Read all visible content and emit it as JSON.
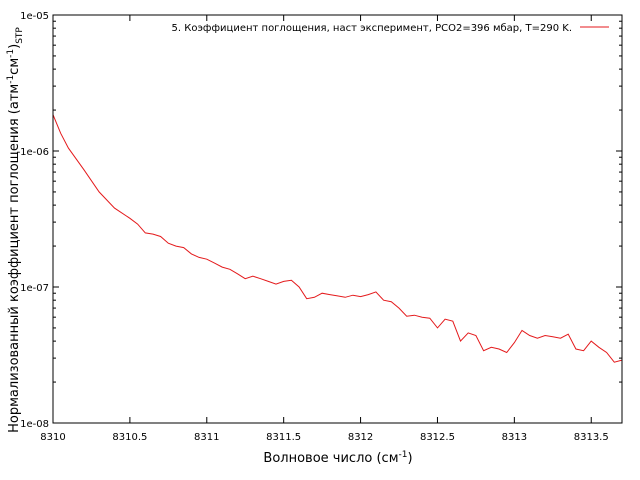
{
  "chart_data": {
    "type": "line",
    "xlabel": {
      "main": "Волновое число (см",
      "sup": "-1",
      "tail": ")"
    },
    "ylabel": {
      "parts": [
        {
          "t": "Нормализованный коэффициент поглощения (атм"
        },
        {
          "t": "-1",
          "s": "sup"
        },
        {
          "t": "см"
        },
        {
          "t": "-1",
          "s": "sup"
        },
        {
          "t": ")"
        },
        {
          "t": "STP",
          "s": "sub"
        }
      ]
    },
    "xlim": [
      8310,
      8313.7
    ],
    "ylim": [
      1e-08,
      1e-05
    ],
    "yscale": "log",
    "grid": false,
    "legend_position": "top-right",
    "x_ticks": [
      {
        "v": 8310,
        "label": "8310"
      },
      {
        "v": 8310.5,
        "label": "8310.5"
      },
      {
        "v": 8311,
        "label": "8311"
      },
      {
        "v": 8311.5,
        "label": "8311.5"
      },
      {
        "v": 8312,
        "label": "8312"
      },
      {
        "v": 8312.5,
        "label": "8312.5"
      },
      {
        "v": 8313,
        "label": "8313"
      },
      {
        "v": 8313.5,
        "label": "8313.5"
      }
    ],
    "y_ticks": [
      {
        "v": 1e-08,
        "label": "1e-08"
      },
      {
        "v": 1e-07,
        "label": "1e-07"
      },
      {
        "v": 1e-06,
        "label": "1e-06"
      },
      {
        "v": 1e-05,
        "label": "1e-05"
      }
    ],
    "series": [
      {
        "name": "5. Коэффициент поглощения, наст эксперимент, PCO2=396 мбар, T=290 K.",
        "color": "#e41a1c",
        "x": [
          8310.0,
          8310.05,
          8310.1,
          8310.2,
          8310.3,
          8310.4,
          8310.5,
          8310.55,
          8310.6,
          8310.65,
          8310.7,
          8310.75,
          8310.8,
          8310.85,
          8310.9,
          8310.95,
          8311.0,
          8311.05,
          8311.1,
          8311.15,
          8311.2,
          8311.25,
          8311.3,
          8311.35,
          8311.4,
          8311.45,
          8311.5,
          8311.55,
          8311.6,
          8311.65,
          8311.7,
          8311.75,
          8311.8,
          8311.85,
          8311.9,
          8311.95,
          8312.0,
          8312.05,
          8312.1,
          8312.15,
          8312.2,
          8312.25,
          8312.3,
          8312.35,
          8312.4,
          8312.45,
          8312.5,
          8312.55,
          8312.6,
          8312.65,
          8312.7,
          8312.75,
          8312.8,
          8312.85,
          8312.9,
          8312.95,
          8313.0,
          8313.05,
          8313.1,
          8313.15,
          8313.2,
          8313.25,
          8313.3,
          8313.35,
          8313.4,
          8313.45,
          8313.5,
          8313.55,
          8313.6,
          8313.65,
          8313.7
        ],
        "y": [
          1.85e-06,
          1.35e-06,
          1.05e-06,
          7.3e-07,
          5e-07,
          3.8e-07,
          3.2e-07,
          2.9e-07,
          2.5e-07,
          2.45e-07,
          2.35e-07,
          2.1e-07,
          2e-07,
          1.95e-07,
          1.75e-07,
          1.65e-07,
          1.6e-07,
          1.5e-07,
          1.4e-07,
          1.35e-07,
          1.25e-07,
          1.15e-07,
          1.2e-07,
          1.15e-07,
          1.1e-07,
          1.05e-07,
          1.1e-07,
          1.12e-07,
          1e-07,
          8.2e-08,
          8.4e-08,
          9e-08,
          8.8e-08,
          8.6e-08,
          8.4e-08,
          8.7e-08,
          8.5e-08,
          8.8e-08,
          9.2e-08,
          8e-08,
          7.8e-08,
          7e-08,
          6.1e-08,
          6.2e-08,
          6e-08,
          5.9e-08,
          5e-08,
          5.8e-08,
          5.6e-08,
          4e-08,
          4.6e-08,
          4.4e-08,
          3.4e-08,
          3.6e-08,
          3.5e-08,
          3.3e-08,
          3.9e-08,
          4.8e-08,
          4.4e-08,
          4.2e-08,
          4.4e-08,
          4.3e-08,
          4.2e-08,
          4.5e-08,
          3.5e-08,
          3.4e-08,
          4e-08,
          3.6e-08,
          3.3e-08,
          2.8e-08,
          2.9e-08
        ]
      }
    ]
  }
}
